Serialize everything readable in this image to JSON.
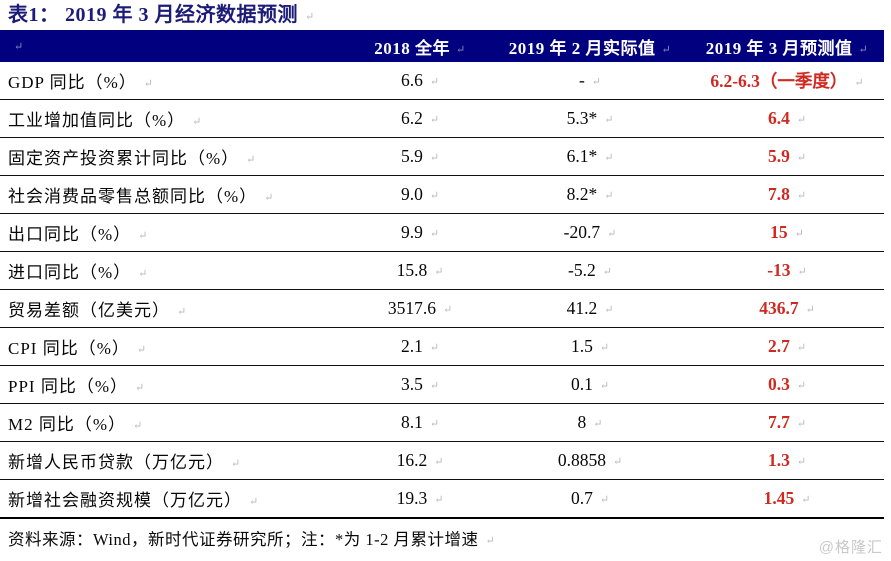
{
  "title": "表1： 2019 年 3 月经济数据预测",
  "table": {
    "columns": [
      "",
      "2018 全年",
      "2019 年 2 月实际值",
      "2019 年 3 月预测值"
    ],
    "rows": [
      {
        "label": "GDP 同比（%）",
        "y2018": "6.6",
        "feb2019": "-",
        "mar2019": "6.2-6.3（一季度）"
      },
      {
        "label": "工业增加值同比（%）",
        "y2018": "6.2",
        "feb2019": "5.3*",
        "mar2019": "6.4"
      },
      {
        "label": "固定资产投资累计同比（%）",
        "y2018": "5.9",
        "feb2019": "6.1*",
        "mar2019": "5.9"
      },
      {
        "label": "社会消费品零售总额同比（%）",
        "y2018": "9.0",
        "feb2019": "8.2*",
        "mar2019": "7.8"
      },
      {
        "label": "出口同比（%）",
        "y2018": "9.9",
        "feb2019": "-20.7",
        "mar2019": "15"
      },
      {
        "label": "进口同比（%）",
        "y2018": "15.8",
        "feb2019": "-5.2",
        "mar2019": "-13"
      },
      {
        "label": "贸易差额（亿美元）",
        "y2018": "3517.6",
        "feb2019": "41.2",
        "mar2019": "436.7"
      },
      {
        "label": "CPI 同比（%）",
        "y2018": "2.1",
        "feb2019": "1.5",
        "mar2019": "2.7"
      },
      {
        "label": "PPI 同比（%）",
        "y2018": "3.5",
        "feb2019": "0.1",
        "mar2019": "0.3"
      },
      {
        "label": "M2 同比（%）",
        "y2018": "8.1",
        "feb2019": "8",
        "mar2019": "7.7"
      },
      {
        "label": "新增人民币贷款（万亿元）",
        "y2018": "16.2",
        "feb2019": "0.8858",
        "mar2019": "1.3"
      },
      {
        "label": "新增社会融资规模（万亿元）",
        "y2018": "19.3",
        "feb2019": "0.7",
        "mar2019": "1.45"
      }
    ]
  },
  "footer": {
    "source": "资料来源：Wind，新时代证券研究所；注：*为 1-2 月累计增速"
  },
  "watermark": "@格隆汇",
  "colors": {
    "header_background": "#010180",
    "title_text": "#1c1c78",
    "forecast_text": "#ce2a21",
    "body_text": "#070707",
    "watermark_text": "#c9c9c9"
  }
}
